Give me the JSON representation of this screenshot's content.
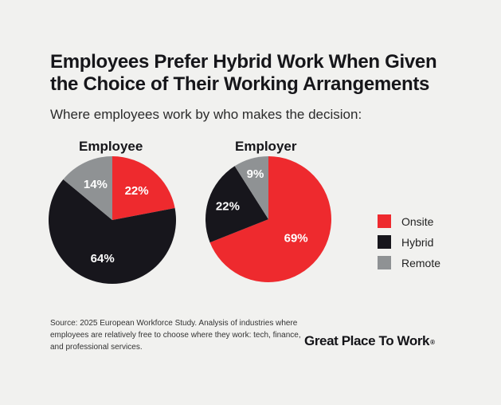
{
  "title": "Employees Prefer Hybrid Work When Given the Choice of Their Working Arrangements",
  "subtitle": "Where employees work by who makes the decision:",
  "colors": {
    "Onsite": "#ee2a2e",
    "Hybrid": "#17161c",
    "Remote": "#8f9294"
  },
  "chart_data": [
    {
      "type": "pie",
      "title": "Employee",
      "slices": [
        {
          "label": "Onsite",
          "value": 22,
          "text": "22%"
        },
        {
          "label": "Hybrid",
          "value": 64,
          "text": "64%"
        },
        {
          "label": "Remote",
          "value": 14,
          "text": "14%"
        }
      ]
    },
    {
      "type": "pie",
      "title": "Employer",
      "slices": [
        {
          "label": "Onsite",
          "value": 69,
          "text": "69%"
        },
        {
          "label": "Hybrid",
          "value": 22,
          "text": "22%"
        },
        {
          "label": "Remote",
          "value": 9,
          "text": "9%"
        }
      ]
    }
  ],
  "legend": [
    "Onsite",
    "Hybrid",
    "Remote"
  ],
  "source": "Source: 2025 European Workforce Study. Analysis of industries where employees are relatively free to choose where they work: tech, finance, and professional services.",
  "brand": {
    "name": "Great Place To Work",
    "mark": "®"
  }
}
